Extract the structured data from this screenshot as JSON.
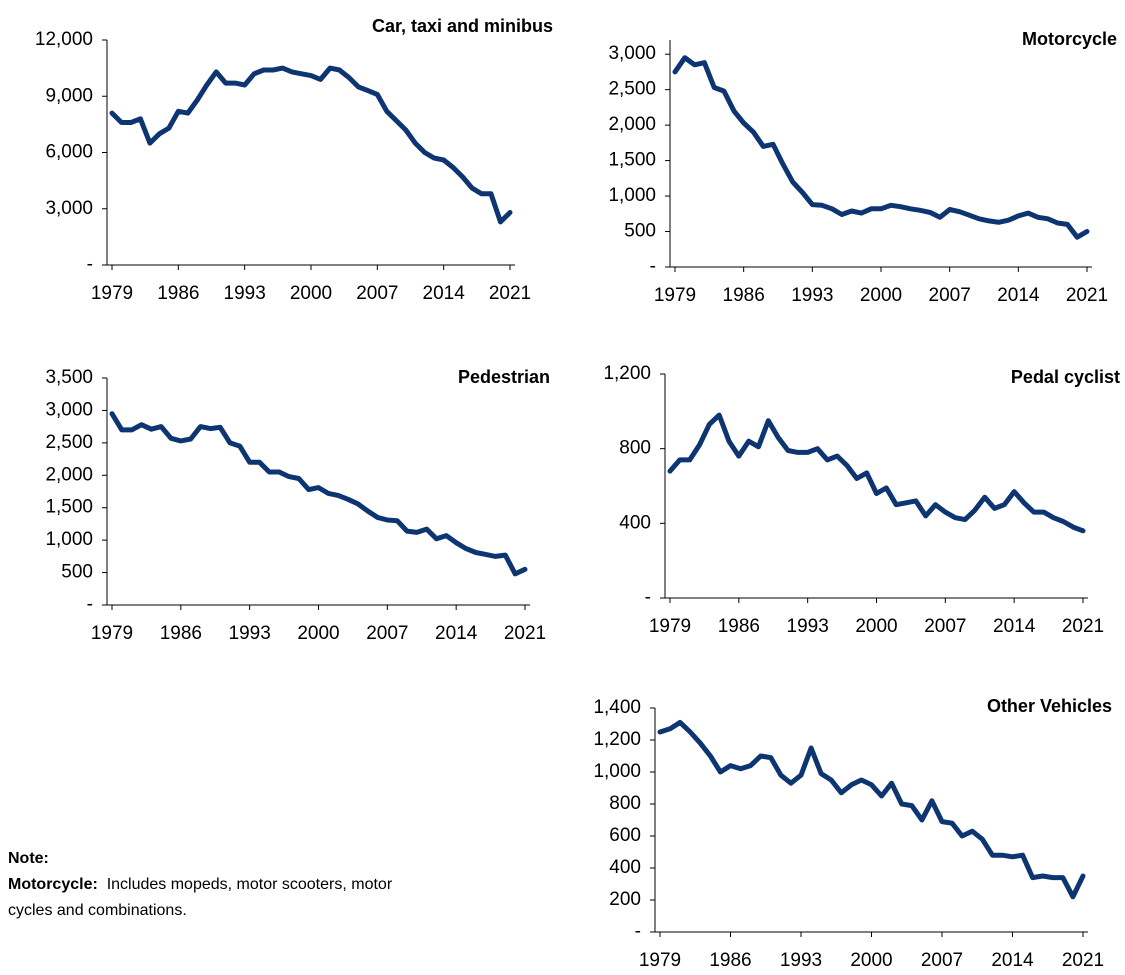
{
  "chart_data": [
    {
      "type": "line",
      "title": "Car, taxi and minibus",
      "color": "#0d3572",
      "x": [
        1979,
        1980,
        1981,
        1982,
        1983,
        1984,
        1985,
        1986,
        1987,
        1988,
        1989,
        1990,
        1991,
        1992,
        1993,
        1994,
        1995,
        1996,
        1997,
        1998,
        1999,
        2000,
        2001,
        2002,
        2003,
        2004,
        2005,
        2006,
        2007,
        2008,
        2009,
        2010,
        2011,
        2012,
        2013,
        2014,
        2015,
        2016,
        2017,
        2018,
        2019,
        2020,
        2021
      ],
      "values": [
        8100,
        7600,
        7600,
        7800,
        6500,
        7000,
        7300,
        8200,
        8100,
        8800,
        9600,
        10300,
        9700,
        9700,
        9600,
        10200,
        10400,
        10400,
        10500,
        10300,
        10200,
        10100,
        9900,
        10500,
        10400,
        10000,
        9500,
        9300,
        9100,
        8200,
        7700,
        7200,
        6500,
        6000,
        5700,
        5600,
        5200,
        4700,
        4100,
        3800,
        3800,
        2300,
        2800
      ],
      "xlim": [
        1979,
        2021
      ],
      "xticks": [
        1979,
        1986,
        1993,
        2000,
        2007,
        2014,
        2021
      ],
      "ylim": [
        0,
        12000
      ],
      "yticks": [
        {
          "value": 0,
          "label": "-"
        },
        {
          "value": 3000,
          "label": "3,000"
        },
        {
          "value": 6000,
          "label": "6,000"
        },
        {
          "value": 9000,
          "label": "9,000"
        },
        {
          "value": 12000,
          "label": "12,000"
        }
      ]
    },
    {
      "type": "line",
      "title": "Motorcycle",
      "color": "#0d3572",
      "x": [
        1979,
        1980,
        1981,
        1982,
        1983,
        1984,
        1985,
        1986,
        1987,
        1988,
        1989,
        1990,
        1991,
        1992,
        1993,
        1994,
        1995,
        1996,
        1997,
        1998,
        1999,
        2000,
        2001,
        2002,
        2003,
        2004,
        2005,
        2006,
        2007,
        2008,
        2009,
        2010,
        2011,
        2012,
        2013,
        2014,
        2015,
        2016,
        2017,
        2018,
        2019,
        2020,
        2021
      ],
      "values": [
        2750,
        2950,
        2850,
        2880,
        2530,
        2480,
        2200,
        2030,
        1900,
        1700,
        1730,
        1450,
        1200,
        1050,
        880,
        870,
        820,
        740,
        790,
        760,
        820,
        820,
        870,
        850,
        820,
        800,
        770,
        700,
        810,
        780,
        730,
        680,
        650,
        630,
        660,
        720,
        760,
        700,
        680,
        620,
        600,
        420,
        500
      ],
      "xlim": [
        1979,
        2021
      ],
      "xticks": [
        1979,
        1986,
        1993,
        2000,
        2007,
        2014,
        2021
      ],
      "ylim": [
        0,
        3200
      ],
      "yticks": [
        {
          "value": 0,
          "label": "-"
        },
        500,
        {
          "value": 1000,
          "label": "1,000"
        },
        {
          "value": 1500,
          "label": "1,500"
        },
        {
          "value": 2000,
          "label": "2,000"
        },
        {
          "value": 2500,
          "label": "2,500"
        },
        {
          "value": 3000,
          "label": "3,000"
        }
      ]
    },
    {
      "type": "line",
      "title": "Pedestrian",
      "color": "#0d3572",
      "x": [
        1979,
        1980,
        1981,
        1982,
        1983,
        1984,
        1985,
        1986,
        1987,
        1988,
        1989,
        1990,
        1991,
        1992,
        1993,
        1994,
        1995,
        1996,
        1997,
        1998,
        1999,
        2000,
        2001,
        2002,
        2003,
        2004,
        2005,
        2006,
        2007,
        2008,
        2009,
        2010,
        2011,
        2012,
        2013,
        2014,
        2015,
        2016,
        2017,
        2018,
        2019,
        2020,
        2021
      ],
      "values": [
        2950,
        2700,
        2700,
        2780,
        2710,
        2750,
        2570,
        2530,
        2560,
        2750,
        2720,
        2740,
        2500,
        2450,
        2200,
        2200,
        2050,
        2050,
        1980,
        1950,
        1780,
        1810,
        1720,
        1690,
        1630,
        1560,
        1450,
        1350,
        1310,
        1300,
        1140,
        1120,
        1170,
        1020,
        1070,
        960,
        870,
        810,
        780,
        750,
        770,
        480,
        550
      ],
      "xlim": [
        1979,
        2021
      ],
      "xticks": [
        1979,
        1986,
        1993,
        2000,
        2007,
        2014,
        2021
      ],
      "ylim": [
        0,
        3500
      ],
      "yticks": [
        {
          "value": 0,
          "label": "-"
        },
        500,
        {
          "value": 1000,
          "label": "1,000"
        },
        {
          "value": 1500,
          "label": "1,500"
        },
        {
          "value": 2000,
          "label": "2,000"
        },
        {
          "value": 2500,
          "label": "2,500"
        },
        {
          "value": 3000,
          "label": "3,000"
        },
        {
          "value": 3500,
          "label": "3,500"
        }
      ]
    },
    {
      "type": "line",
      "title": "Pedal cyclist",
      "color": "#0d3572",
      "x": [
        1979,
        1980,
        1981,
        1982,
        1983,
        1984,
        1985,
        1986,
        1987,
        1988,
        1989,
        1990,
        1991,
        1992,
        1993,
        1994,
        1995,
        1996,
        1997,
        1998,
        1999,
        2000,
        2001,
        2002,
        2003,
        2004,
        2005,
        2006,
        2007,
        2008,
        2009,
        2010,
        2011,
        2012,
        2013,
        2014,
        2015,
        2016,
        2017,
        2018,
        2019,
        2020,
        2021
      ],
      "values": [
        680,
        740,
        740,
        820,
        930,
        980,
        840,
        760,
        840,
        810,
        950,
        860,
        790,
        780,
        780,
        800,
        740,
        760,
        710,
        640,
        670,
        560,
        590,
        500,
        510,
        520,
        440,
        500,
        460,
        430,
        420,
        470,
        540,
        480,
        500,
        570,
        510,
        460,
        460,
        430,
        410,
        380,
        360
      ],
      "xlim": [
        1979,
        2021
      ],
      "xticks": [
        1979,
        1986,
        1993,
        2000,
        2007,
        2014,
        2021
      ],
      "ylim": [
        0,
        1200
      ],
      "yticks": [
        {
          "value": 0,
          "label": "-"
        },
        400,
        800,
        {
          "value": 1200,
          "label": "1,200"
        }
      ]
    },
    {
      "type": "line",
      "title": "Other Vehicles",
      "color": "#0d3572",
      "x": [
        1979,
        1980,
        1981,
        1982,
        1983,
        1984,
        1985,
        1986,
        1987,
        1988,
        1989,
        1990,
        1991,
        1992,
        1993,
        1994,
        1995,
        1996,
        1997,
        1998,
        1999,
        2000,
        2001,
        2002,
        2003,
        2004,
        2005,
        2006,
        2007,
        2008,
        2009,
        2010,
        2011,
        2012,
        2013,
        2014,
        2015,
        2016,
        2017,
        2018,
        2019,
        2020,
        2021
      ],
      "values": [
        1250,
        1270,
        1310,
        1250,
        1180,
        1100,
        1000,
        1040,
        1020,
        1040,
        1100,
        1090,
        980,
        930,
        980,
        1150,
        990,
        950,
        870,
        920,
        950,
        920,
        850,
        930,
        800,
        790,
        700,
        820,
        690,
        680,
        600,
        630,
        580,
        480,
        480,
        470,
        480,
        340,
        350,
        340,
        340,
        220,
        350
      ],
      "xlim": [
        1979,
        2021
      ],
      "xticks": [
        1979,
        1986,
        1993,
        2000,
        2007,
        2014,
        2021
      ],
      "ylim": [
        0,
        1400
      ],
      "yticks": [
        {
          "value": 0,
          "label": "-"
        },
        200,
        400,
        600,
        800,
        {
          "value": 1000,
          "label": "1,000"
        },
        {
          "value": 1200,
          "label": "1,200"
        },
        {
          "value": 1400,
          "label": "1,400"
        }
      ]
    }
  ],
  "note": {
    "title": "Note:",
    "label": "Motorcycle:",
    "text": "Includes mopeds, motor scooters, motor cycles and combinations."
  }
}
